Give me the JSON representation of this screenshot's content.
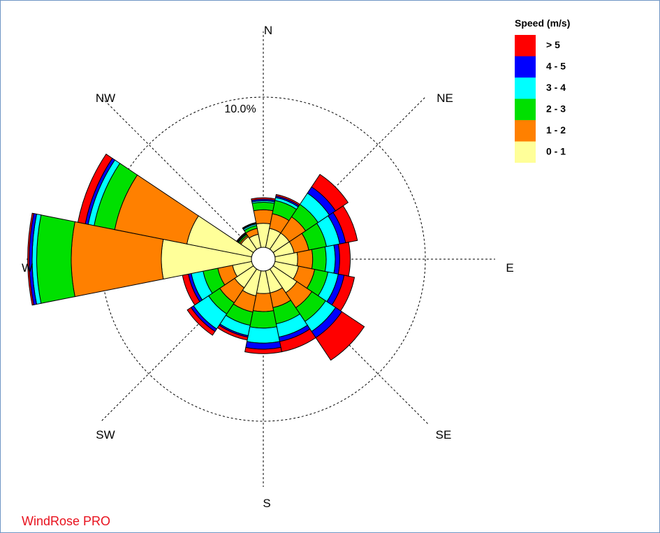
{
  "brand": {
    "label": "WindRose PRO",
    "color": "#e8111d"
  },
  "chart_data": {
    "type": "wind-rose",
    "title": "",
    "legend_title": "Speed (m/s)",
    "legend_placement": "top-right",
    "ring_label": "10.0%",
    "ring_value_percent": 10.0,
    "directions": [
      "N",
      "NNE",
      "NE",
      "ENE",
      "E",
      "ESE",
      "SE",
      "SSE",
      "S",
      "SSW",
      "SW",
      "WSW",
      "W",
      "WNW",
      "NW",
      "NNW"
    ],
    "axis_labels": [
      "N",
      "NE",
      "E",
      "SE",
      "S",
      "SW",
      "W",
      "NW"
    ],
    "speed_bins": [
      {
        "label": "0 - 1",
        "color": "#ffff99"
      },
      {
        "label": "1 - 2",
        "color": "#ff8000"
      },
      {
        "label": "2 - 3",
        "color": "#00e000"
      },
      {
        "label": "3 - 4",
        "color": "#00ffff"
      },
      {
        "label": "4 - 5",
        "color": "#0000ff"
      },
      {
        "label": "> 5",
        "color": "#ff0000"
      }
    ],
    "legend_order": [
      "> 5",
      "4 - 5",
      "3 - 4",
      "2 - 3",
      "1 - 2",
      "0 - 1"
    ],
    "units": "percent of time",
    "sectors": [
      {
        "direction": "N",
        "cumulative_percent": [
          1.6,
          2.5,
          3.0,
          3.1,
          3.2,
          3.3
        ]
      },
      {
        "direction": "NNE",
        "cumulative_percent": [
          1.3,
          2.3,
          3.2,
          3.4,
          3.5,
          3.6
        ]
      },
      {
        "direction": "NE",
        "cumulative_percent": [
          1.3,
          2.6,
          3.6,
          4.5,
          5.0,
          6.0
        ]
      },
      {
        "direction": "ENE",
        "cumulative_percent": [
          1.3,
          2.3,
          3.5,
          4.4,
          4.8,
          5.6
        ]
      },
      {
        "direction": "E",
        "cumulative_percent": [
          1.5,
          2.5,
          3.4,
          4.0,
          4.3,
          5.0
        ]
      },
      {
        "direction": "ESE",
        "cumulative_percent": [
          1.6,
          2.7,
          3.6,
          4.3,
          4.7,
          5.4
        ]
      },
      {
        "direction": "SE",
        "cumulative_percent": [
          1.9,
          3.1,
          4.2,
          5.0,
          5.5,
          7.3
        ]
      },
      {
        "direction": "SSE",
        "cumulative_percent": [
          1.5,
          2.5,
          3.6,
          4.5,
          4.8,
          5.5
        ]
      },
      {
        "direction": "S",
        "cumulative_percent": [
          1.5,
          2.7,
          3.8,
          4.8,
          5.2,
          5.5
        ]
      },
      {
        "direction": "SSW",
        "cumulative_percent": [
          1.7,
          2.8,
          3.7,
          4.4,
          4.5,
          4.7
        ]
      },
      {
        "direction": "SW",
        "cumulative_percent": [
          1.5,
          2.7,
          3.6,
          4.8,
          5.0,
          5.3
        ]
      },
      {
        "direction": "WSW",
        "cumulative_percent": [
          1.3,
          2.3,
          3.3,
          4.1,
          4.3,
          4.7
        ]
      },
      {
        "direction": "W",
        "cumulative_percent": [
          6.0,
          12.0,
          14.3,
          14.6,
          14.8,
          14.9
        ]
      },
      {
        "direction": "WNW",
        "cumulative_percent": [
          4.4,
          9.3,
          10.7,
          11.1,
          11.3,
          11.8
        ]
      },
      {
        "direction": "NW",
        "cumulative_percent": [
          1.0,
          1.1,
          1.2,
          1.25,
          1.3,
          1.35
        ]
      },
      {
        "direction": "NNW",
        "cumulative_percent": [
          0.9,
          1.3,
          1.5,
          1.6,
          1.65,
          1.7
        ]
      }
    ],
    "grid": true
  }
}
